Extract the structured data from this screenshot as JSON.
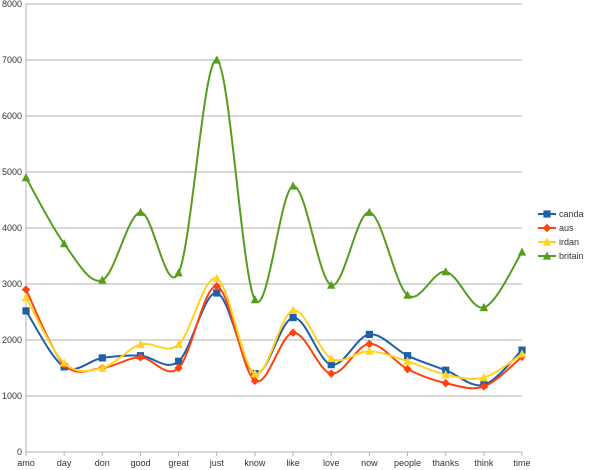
{
  "chart_data": {
    "type": "line",
    "title": "",
    "xlabel": "",
    "ylabel": "",
    "categories": [
      "amo",
      "day",
      "don",
      "good",
      "great",
      "just",
      "know",
      "like",
      "love",
      "now",
      "people",
      "thanks",
      "think",
      "time"
    ],
    "ylim": [
      0,
      8000
    ],
    "yticks": [
      0,
      1000,
      2000,
      3000,
      4000,
      5000,
      6000,
      7000,
      8000
    ],
    "grid": "horizontal",
    "legend_position": "right",
    "smooth": true,
    "series": [
      {
        "name": "canda",
        "color": "#1f5fa6",
        "marker": "square",
        "values": [
          2520,
          1520,
          1680,
          1720,
          1620,
          2840,
          1400,
          2400,
          1560,
          2100,
          1720,
          1460,
          1200,
          1820
        ]
      },
      {
        "name": "aus",
        "color": "#ff420e",
        "marker": "diamond",
        "values": [
          2900,
          1560,
          1500,
          1690,
          1500,
          2960,
          1270,
          2130,
          1400,
          1930,
          1480,
          1230,
          1170,
          1700
        ]
      },
      {
        "name": "irdan",
        "color": "#ffd320",
        "marker": "triangle",
        "values": [
          2760,
          1590,
          1500,
          1920,
          1920,
          3100,
          1400,
          2530,
          1670,
          1800,
          1620,
          1380,
          1330,
          1750
        ]
      },
      {
        "name": "britain",
        "color": "#579d1c",
        "marker": "triangle",
        "values": [
          4900,
          3720,
          3070,
          4280,
          3200,
          7000,
          2720,
          4750,
          2980,
          4280,
          2800,
          3220,
          2580,
          3570
        ]
      }
    ]
  }
}
